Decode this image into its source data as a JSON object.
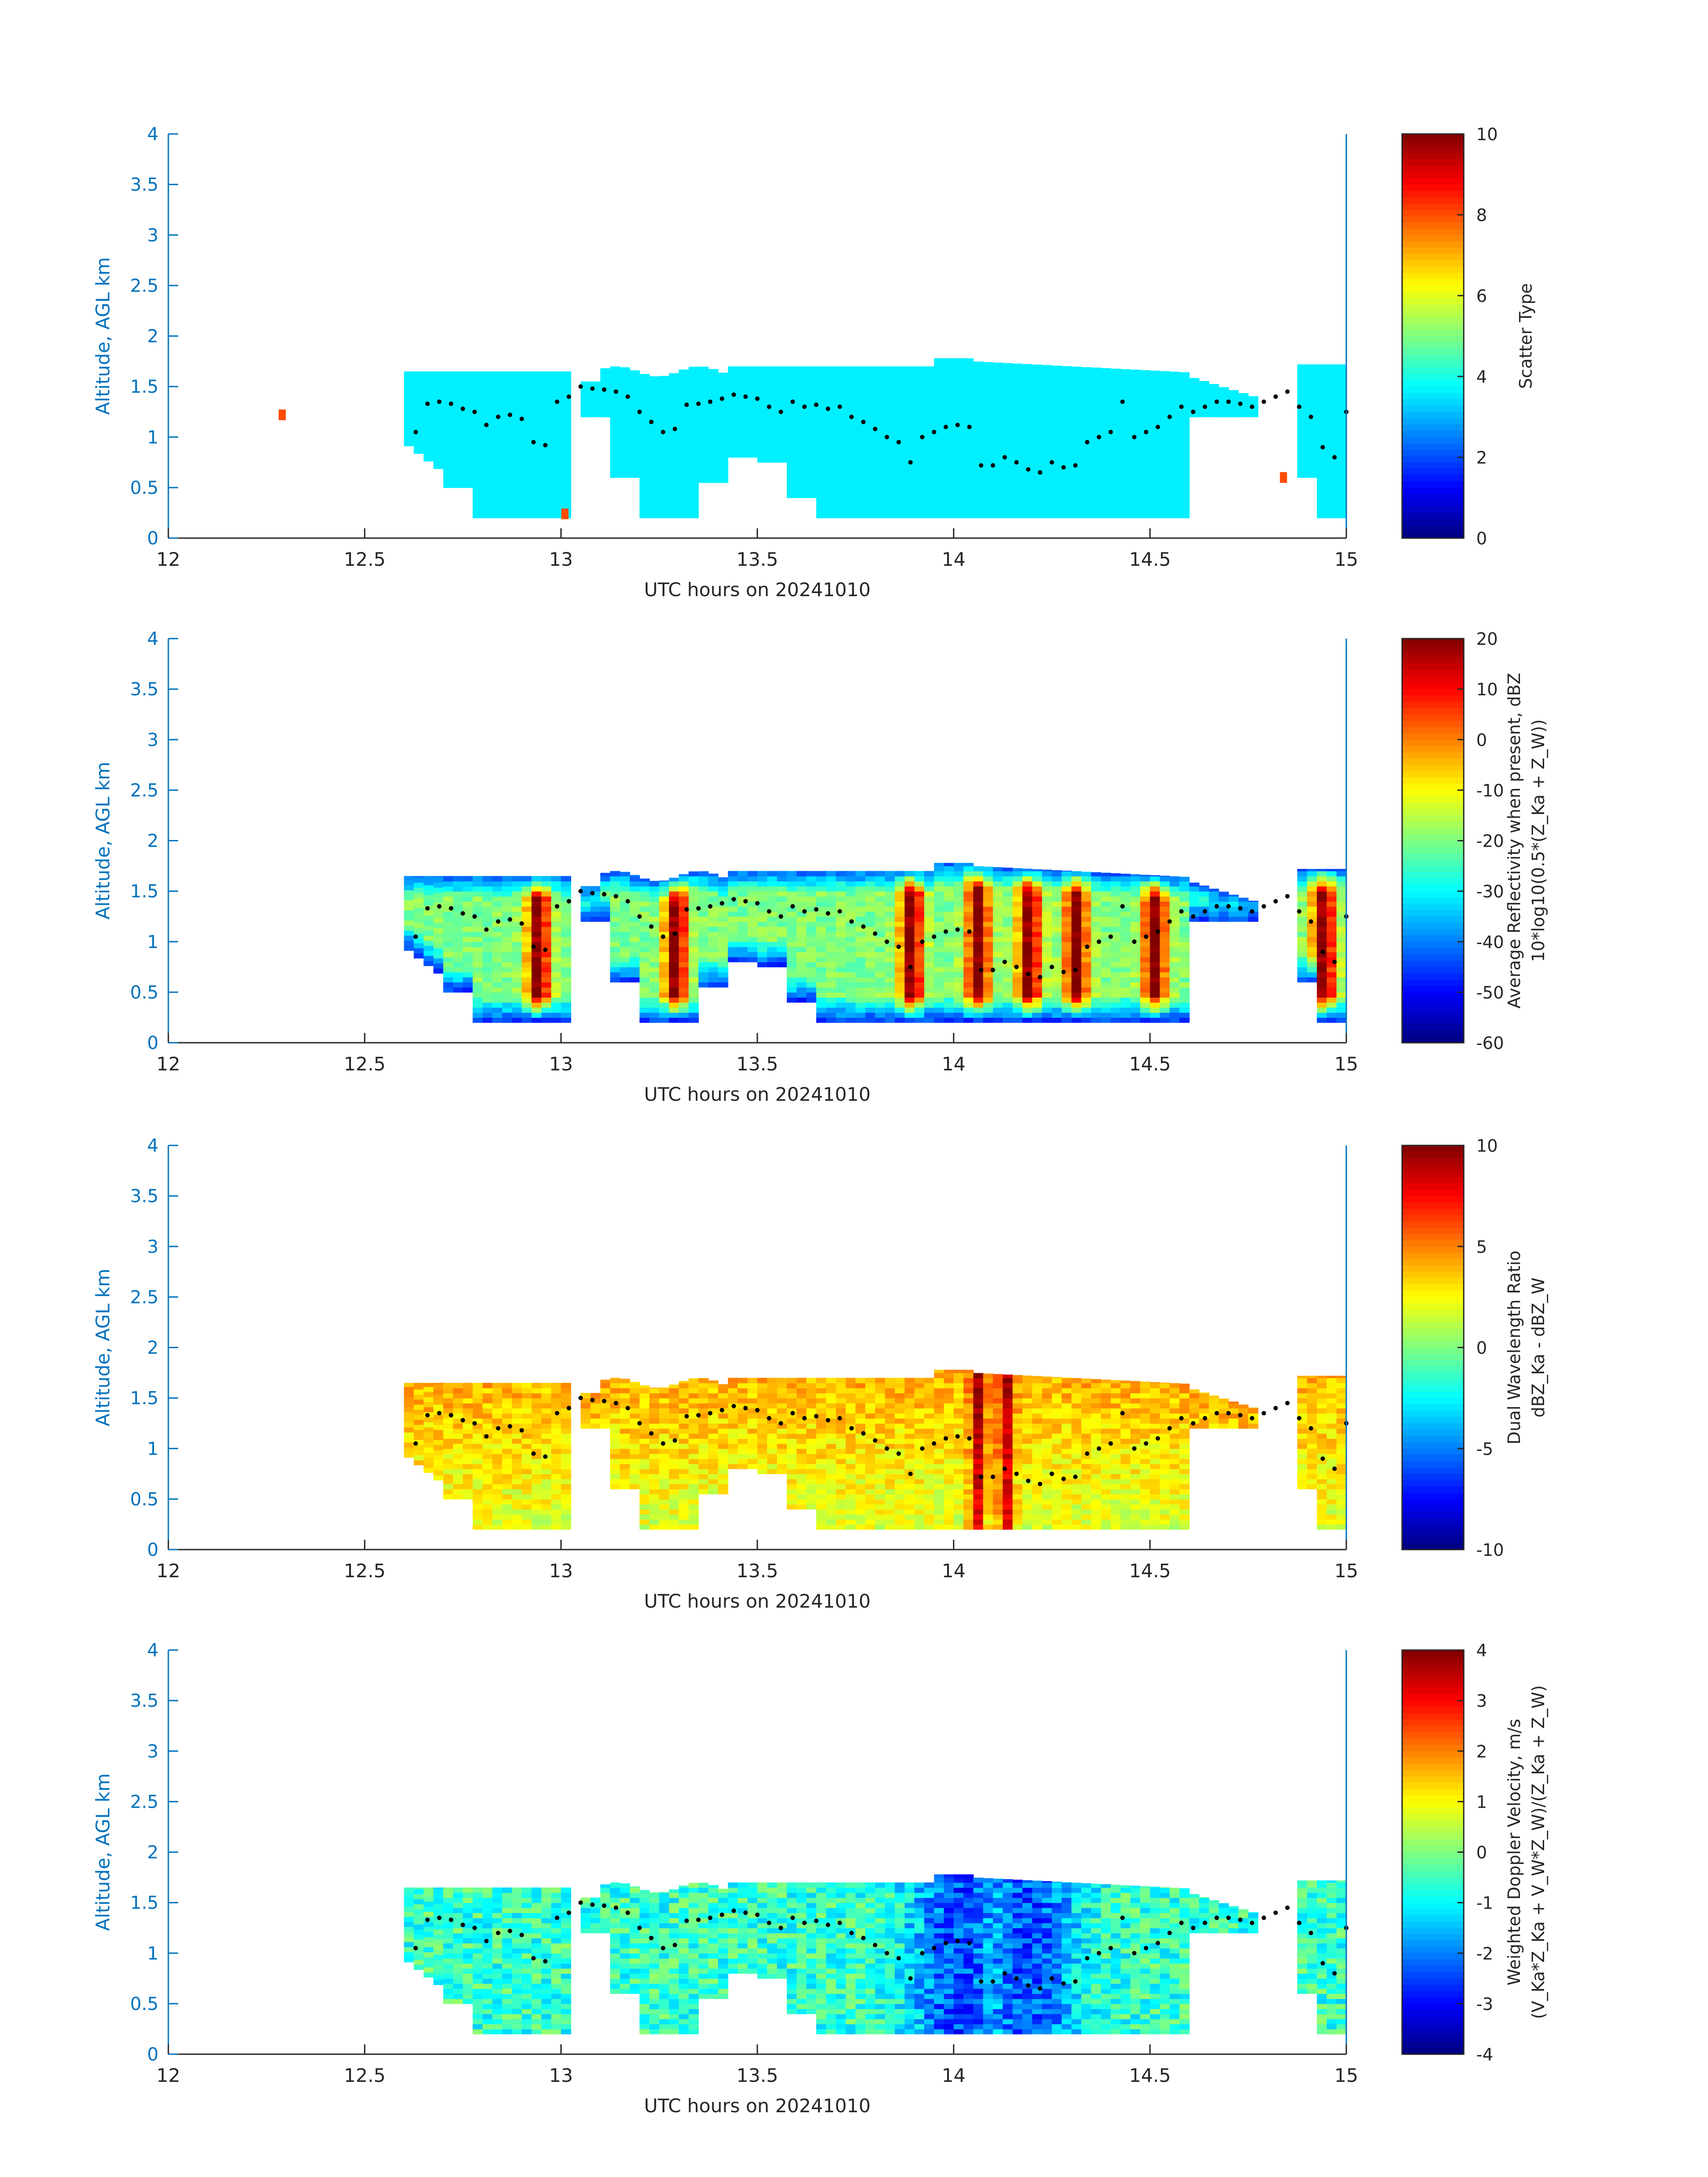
{
  "figure": {
    "xlabel": "UTC hours on 20241010",
    "ylabel": "Altitude, AGL km",
    "axis_color": "#0072bd",
    "colormap": "jet"
  },
  "chart_data": [
    {
      "type": "heatmap",
      "xlabel": "UTC hours on 20241010",
      "ylabel": "Altitude, AGL km",
      "xlim": [
        12,
        15
      ],
      "ylim": [
        0,
        4
      ],
      "xticks": [
        "12",
        "12.5",
        "13",
        "13.5",
        "14",
        "14.5",
        "15"
      ],
      "yticks": [
        "0",
        "0.5",
        "1",
        "1.5",
        "2",
        "2.5",
        "3",
        "3.5",
        "4"
      ],
      "colorbar": {
        "label_lines": [
          "Scatter Type"
        ],
        "range": [
          0,
          10
        ],
        "ticks": [
          "0",
          "2",
          "4",
          "6",
          "8",
          "10"
        ]
      },
      "field": "scatter_type",
      "dominant_value": 3.6,
      "echo_extents_km": {
        "x_range_hours": [
          12.6,
          15.0
        ],
        "top_km": 1.65,
        "bottom_km": 0.18
      },
      "isolated_returns": [
        {
          "x": 12.29,
          "y": 1.22,
          "value": 8.0
        },
        {
          "x": 13.01,
          "y": 0.24,
          "value": 8.0
        },
        {
          "x": 14.84,
          "y": 0.6,
          "value": 8.0
        }
      ]
    },
    {
      "type": "heatmap",
      "xlabel": "UTC hours on 20241010",
      "ylabel": "Altitude, AGL km",
      "xlim": [
        12,
        15
      ],
      "ylim": [
        0,
        4
      ],
      "xticks": [
        "12",
        "12.5",
        "13",
        "13.5",
        "14",
        "14.5",
        "15"
      ],
      "yticks": [
        "0",
        "0.5",
        "1",
        "1.5",
        "2",
        "2.5",
        "3",
        "3.5",
        "4"
      ],
      "colorbar": {
        "label_lines": [
          "Average Reflectivity when present, dBZ",
          "10*log10(0.5*(Z_Ka + Z_W))"
        ],
        "range": [
          -60,
          20
        ],
        "ticks": [
          "-60",
          "-50",
          "-40",
          "-30",
          "-20",
          "-10",
          "0",
          "10",
          "20"
        ]
      },
      "field": "avg_reflectivity_dbz",
      "typical_range_dbz": [
        -45,
        15
      ],
      "strong_columns_hours": [
        12.93,
        13.28,
        13.88,
        14.05,
        14.18,
        14.3,
        14.5,
        14.93
      ]
    },
    {
      "type": "heatmap",
      "xlabel": "UTC hours on 20241010",
      "ylabel": "Altitude, AGL km",
      "xlim": [
        12,
        15
      ],
      "ylim": [
        0,
        4
      ],
      "xticks": [
        "12",
        "12.5",
        "13",
        "13.5",
        "14",
        "14.5",
        "15"
      ],
      "yticks": [
        "0",
        "0.5",
        "1",
        "1.5",
        "2",
        "2.5",
        "3",
        "3.5",
        "4"
      ],
      "colorbar": {
        "label_lines": [
          "Dual Wavelength Ratio",
          "dBZ_Ka - dBZ_W"
        ],
        "range": [
          -10,
          10
        ],
        "ticks": [
          "-10",
          "-5",
          "0",
          "5",
          "10"
        ]
      },
      "field": "dual_wavelength_ratio_db",
      "typical_range_db": [
        -1,
        6
      ],
      "strong_columns_hours": [
        14.05,
        14.12
      ]
    },
    {
      "type": "heatmap",
      "xlabel": "UTC hours on 20241010",
      "ylabel": "Altitude, AGL km",
      "xlim": [
        12,
        15
      ],
      "ylim": [
        0,
        4
      ],
      "xticks": [
        "12",
        "12.5",
        "13",
        "13.5",
        "14",
        "14.5",
        "15"
      ],
      "yticks": [
        "0",
        "0.5",
        "1",
        "1.5",
        "2",
        "2.5",
        "3",
        "3.5",
        "4"
      ],
      "colorbar": {
        "label_lines": [
          "Weighted Doppler Velocity, m/s",
          "(V_Ka*Z_Ka + V_W*Z_W)/(Z_Ka + Z_W)"
        ],
        "range": [
          -4,
          4
        ],
        "ticks": [
          "-4",
          "-3",
          "-2",
          "-1",
          "0",
          "1",
          "2",
          "3",
          "4"
        ]
      },
      "field": "weighted_doppler_velocity_ms",
      "typical_range_ms": [
        -3,
        0.5
      ],
      "strongest_downward_hours": [
        14.0,
        14.18
      ]
    }
  ],
  "cloud_base_dots": {
    "x": [
      12.63,
      12.66,
      12.69,
      12.72,
      12.75,
      12.78,
      12.81,
      12.84,
      12.87,
      12.9,
      12.93,
      12.96,
      12.99,
      13.02,
      13.05,
      13.08,
      13.11,
      13.14,
      13.17,
      13.2,
      13.23,
      13.26,
      13.29,
      13.32,
      13.35,
      13.38,
      13.41,
      13.44,
      13.47,
      13.5,
      13.53,
      13.56,
      13.59,
      13.62,
      13.65,
      13.68,
      13.71,
      13.74,
      13.77,
      13.8,
      13.83,
      13.86,
      13.89,
      13.92,
      13.95,
      13.98,
      14.01,
      14.04,
      14.07,
      14.1,
      14.13,
      14.16,
      14.19,
      14.22,
      14.25,
      14.28,
      14.31,
      14.34,
      14.37,
      14.4,
      14.43,
      14.46,
      14.49,
      14.52,
      14.55,
      14.58,
      14.61,
      14.64,
      14.67,
      14.7,
      14.73,
      14.76,
      14.79,
      14.82,
      14.85,
      14.88,
      14.91,
      14.94,
      14.97,
      15.0
    ],
    "y": [
      1.05,
      1.33,
      1.35,
      1.33,
      1.28,
      1.25,
      1.12,
      1.2,
      1.22,
      1.18,
      0.95,
      0.92,
      1.35,
      1.4,
      1.5,
      1.48,
      1.47,
      1.45,
      1.4,
      1.25,
      1.15,
      1.05,
      1.08,
      1.32,
      1.33,
      1.35,
      1.38,
      1.42,
      1.4,
      1.38,
      1.3,
      1.25,
      1.35,
      1.3,
      1.32,
      1.28,
      1.3,
      1.2,
      1.15,
      1.08,
      1.0,
      0.95,
      0.75,
      1.0,
      1.05,
      1.1,
      1.12,
      1.1,
      0.72,
      0.72,
      0.8,
      0.75,
      0.68,
      0.65,
      0.75,
      0.7,
      0.72,
      0.95,
      1.0,
      1.05,
      1.35,
      1.0,
      1.05,
      1.1,
      1.2,
      1.3,
      1.25,
      1.3,
      1.35,
      1.35,
      1.33,
      1.3,
      1.35,
      1.4,
      1.45,
      1.3,
      1.2,
      0.9,
      0.8,
      1.25
    ]
  }
}
